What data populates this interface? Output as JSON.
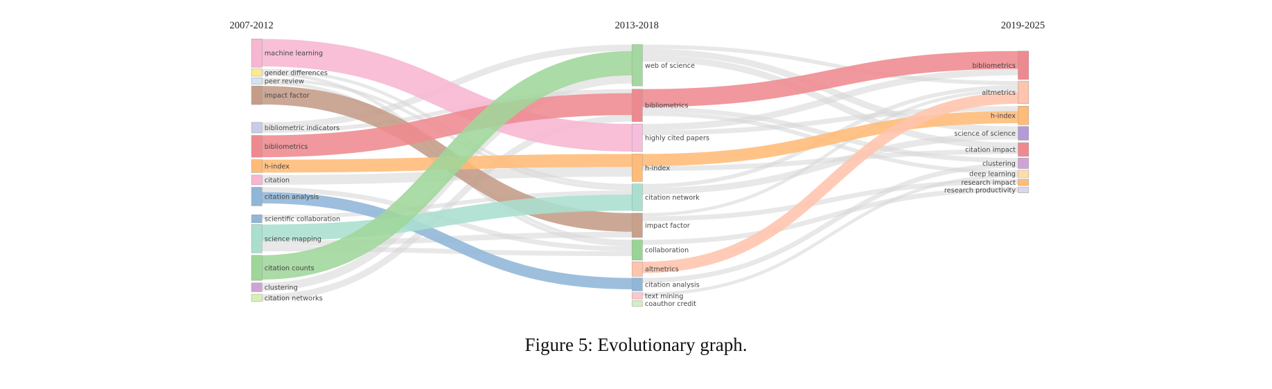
{
  "chart_data": {
    "type": "sankey",
    "columns": [
      "2007-2012",
      "2013-2018",
      "2019-2025"
    ],
    "nodes": [
      {
        "id": "L_ml",
        "label": "machine learning",
        "column": 0,
        "value": 35,
        "color": "#f7b6d2"
      },
      {
        "id": "L_gd",
        "label": "gender differences",
        "column": 0,
        "value": 9,
        "color": "#ffe88a"
      },
      {
        "id": "L_pr",
        "label": "peer review",
        "column": 0,
        "value": 8,
        "color": "#d3e3f0"
      },
      {
        "id": "L_if",
        "label": "impact factor",
        "column": 0,
        "value": 23,
        "color": "#c49c88"
      },
      {
        "id": "L_bi",
        "label": "bibliometric indicators",
        "column": 0,
        "value": 13,
        "color": "#c8cce6"
      },
      {
        "id": "L_bib",
        "label": "bibliometrics",
        "column": 0,
        "value": 27,
        "color": "#ee8a8f"
      },
      {
        "id": "L_hi",
        "label": "h-index",
        "column": 0,
        "value": 16,
        "color": "#ffbb78"
      },
      {
        "id": "L_cit",
        "label": "citation",
        "column": 0,
        "value": 12,
        "color": "#f7b6d2"
      },
      {
        "id": "L_ca",
        "label": "citation analysis",
        "column": 0,
        "value": 23,
        "color": "#90b6d8"
      },
      {
        "id": "L_sc",
        "label": "scientific collaboration",
        "column": 0,
        "value": 10,
        "color": "#90b6d8"
      },
      {
        "id": "L_sm",
        "label": "science mapping",
        "column": 0,
        "value": 35,
        "color": "#aadfd0"
      },
      {
        "id": "L_cc",
        "label": "citation counts",
        "column": 0,
        "value": 31,
        "color": "#9fd69a"
      },
      {
        "id": "L_cl",
        "label": "clustering",
        "column": 0,
        "value": 11,
        "color": "#cfa3d8"
      },
      {
        "id": "L_cn",
        "label": "citation networks",
        "column": 0,
        "value": 9,
        "color": "#d8efb4"
      },
      {
        "id": "M_wos",
        "label": "web of science",
        "column": 1,
        "value": 51,
        "color": "#a4d8a0"
      },
      {
        "id": "M_bib",
        "label": "bibliometrics",
        "column": 1,
        "value": 40,
        "color": "#ee8a8f"
      },
      {
        "id": "M_hcp",
        "label": "highly cited papers",
        "column": 1,
        "value": 34,
        "color": "#f7bddc"
      },
      {
        "id": "M_hi",
        "label": "h-index",
        "column": 1,
        "value": 34,
        "color": "#ffbb78"
      },
      {
        "id": "M_cnw",
        "label": "citation network",
        "column": 1,
        "value": 33,
        "color": "#aadfd0"
      },
      {
        "id": "M_if",
        "label": "impact factor",
        "column": 1,
        "value": 30,
        "color": "#c9a08a"
      },
      {
        "id": "M_col",
        "label": "collaboration",
        "column": 1,
        "value": 25,
        "color": "#98d594"
      },
      {
        "id": "M_alt",
        "label": "altmetrics",
        "column": 1,
        "value": 18,
        "color": "#ffc4ad"
      },
      {
        "id": "M_ca",
        "label": "citation analysis",
        "column": 1,
        "value": 16,
        "color": "#90b6d8"
      },
      {
        "id": "M_tm",
        "label": "text mining",
        "column": 1,
        "value": 8,
        "color": "#ffc6cf"
      },
      {
        "id": "M_coc",
        "label": "coauthor credit",
        "column": 1,
        "value": 7,
        "color": "#d3efc0"
      },
      {
        "id": "R_bib",
        "label": "bibliometrics",
        "column": 2,
        "value": 35,
        "color": "#ee8a8f"
      },
      {
        "id": "R_alt",
        "label": "altmetrics",
        "column": 2,
        "value": 28,
        "color": "#ffc4ad"
      },
      {
        "id": "R_hi",
        "label": "h-index",
        "column": 2,
        "value": 23,
        "color": "#ffbb78"
      },
      {
        "id": "R_sos",
        "label": "science of science",
        "column": 2,
        "value": 17,
        "color": "#b39bd6"
      },
      {
        "id": "R_ci",
        "label": "citation impact",
        "column": 2,
        "value": 17,
        "color": "#ee8a8f"
      },
      {
        "id": "R_cl",
        "label": "clustering",
        "column": 2,
        "value": 13,
        "color": "#cfa3d8"
      },
      {
        "id": "R_dl",
        "label": "deep learning",
        "column": 2,
        "value": 9,
        "color": "#ffdcae"
      },
      {
        "id": "R_ri",
        "label": "research impact",
        "column": 2,
        "value": 8,
        "color": "#ffbb78"
      },
      {
        "id": "R_rp",
        "label": "research productivity",
        "column": 2,
        "value": 7,
        "color": "#ddd6ec"
      }
    ],
    "links": [
      {
        "source": "L_ml",
        "target": "M_hcp",
        "value": 34,
        "highlight": true
      },
      {
        "source": "L_gd",
        "target": "M_cnw",
        "value": 4
      },
      {
        "source": "L_gd",
        "target": "M_col",
        "value": 4
      },
      {
        "source": "L_pr",
        "target": "M_cnw",
        "value": 4
      },
      {
        "source": "L_pr",
        "target": "M_col",
        "value": 4
      },
      {
        "source": "L_if",
        "target": "M_if",
        "value": 23,
        "highlight": true
      },
      {
        "source": "L_bi",
        "target": "M_wos",
        "value": 8
      },
      {
        "source": "L_bi",
        "target": "M_bib",
        "value": 5
      },
      {
        "source": "L_bib",
        "target": "M_bib",
        "value": 27,
        "highlight": true
      },
      {
        "source": "L_hi",
        "target": "M_hi",
        "value": 16,
        "highlight": true
      },
      {
        "source": "L_cit",
        "target": "M_hi",
        "value": 12
      },
      {
        "source": "L_ca",
        "target": "M_ca",
        "value": 14,
        "highlight": true
      },
      {
        "source": "L_ca",
        "target": "M_col",
        "value": 6
      },
      {
        "source": "L_sc",
        "target": "M_cnw",
        "value": 5
      },
      {
        "source": "L_sm",
        "target": "M_cnw",
        "value": 20,
        "highlight": true
      },
      {
        "source": "L_sm",
        "target": "M_if",
        "value": 7
      },
      {
        "source": "L_sm",
        "target": "M_col",
        "value": 6
      },
      {
        "source": "L_cc",
        "target": "M_wos",
        "value": 30,
        "highlight": true
      },
      {
        "source": "L_cl",
        "target": "M_wos",
        "value": 10
      },
      {
        "source": "L_cn",
        "target": "M_bib",
        "value": 8
      },
      {
        "source": "M_wos",
        "target": "R_alt",
        "value": 5
      },
      {
        "source": "M_wos",
        "target": "R_sos",
        "value": 8
      },
      {
        "source": "M_wos",
        "target": "R_ci",
        "value": 8
      },
      {
        "source": "M_bib",
        "target": "R_bib",
        "value": 22,
        "highlight": true
      },
      {
        "source": "M_bib",
        "target": "R_cl",
        "value": 6
      },
      {
        "source": "M_bib",
        "target": "R_dl",
        "value": 5
      },
      {
        "source": "M_hcp",
        "target": "R_bib",
        "value": 8
      },
      {
        "source": "M_hcp",
        "target": "R_hi",
        "value": 6
      },
      {
        "source": "M_hi",
        "target": "R_hi",
        "value": 15,
        "highlight": true
      },
      {
        "source": "M_hi",
        "target": "R_ci",
        "value": 6
      },
      {
        "source": "M_cnw",
        "target": "R_alt",
        "value": 5
      },
      {
        "source": "M_cnw",
        "target": "R_sos",
        "value": 8
      },
      {
        "source": "M_if",
        "target": "R_alt",
        "value": 4
      },
      {
        "source": "M_if",
        "target": "R_ri",
        "value": 6
      },
      {
        "source": "M_col",
        "target": "R_rp",
        "value": 6
      },
      {
        "source": "M_alt",
        "target": "R_alt",
        "value": 14,
        "highlight": true
      },
      {
        "source": "M_ca",
        "target": "R_cl",
        "value": 6
      },
      {
        "source": "M_tm",
        "target": "R_dl",
        "value": 4
      }
    ],
    "link_gray": "#d6d6d6"
  },
  "caption": "Figure 5: Evolutionary graph."
}
